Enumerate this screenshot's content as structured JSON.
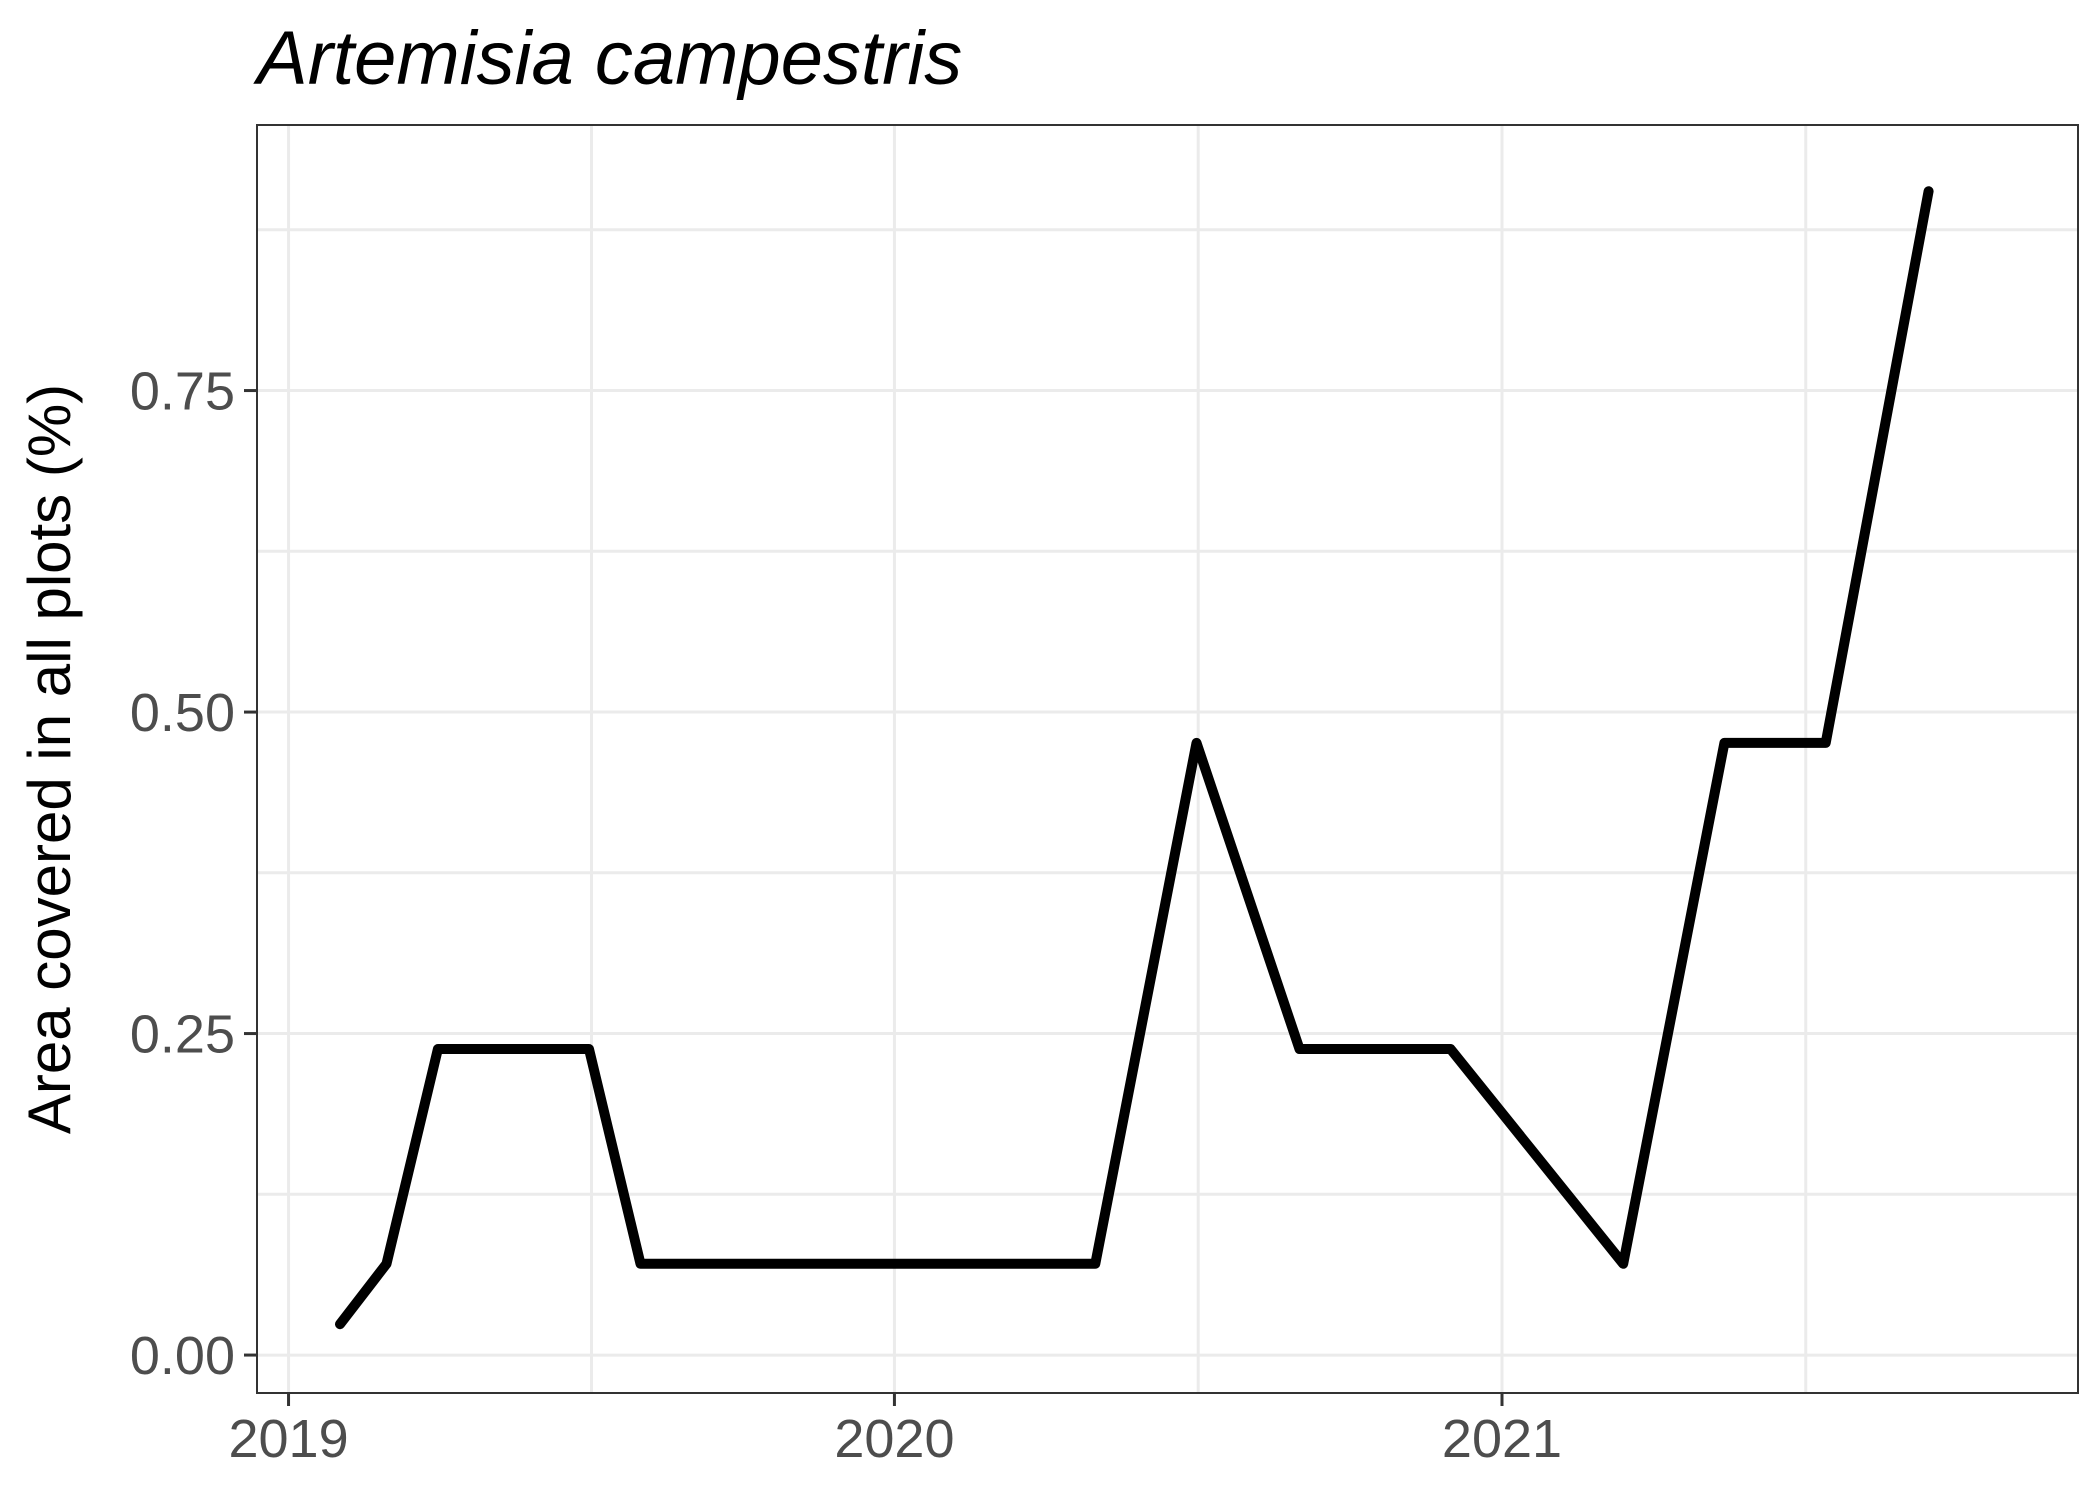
{
  "chart_data": {
    "type": "line",
    "title": "Artemisia campestris",
    "xlabel": "",
    "ylabel": "Area covered in all plots (%)",
    "x_axis": {
      "type": "date",
      "range": [
        "2018-12-13",
        "2021-12-14"
      ],
      "ticks": [
        {
          "value": "2019-01-01",
          "label": "2019"
        },
        {
          "value": "2020-01-01",
          "label": "2020"
        },
        {
          "value": "2021-01-01",
          "label": "2021"
        }
      ]
    },
    "y_axis": {
      "range": [
        -0.0295,
        0.9565
      ],
      "ticks": [
        {
          "value": 0,
          "label": "0.00"
        },
        {
          "value": 0.25,
          "label": "0.25"
        },
        {
          "value": 0.5,
          "label": "0.50"
        },
        {
          "value": 0.75,
          "label": "0.75"
        }
      ]
    },
    "grid": true,
    "legend": "none",
    "series": [
      {
        "color": "#000000",
        "points": [
          {
            "x": "2019-02-01",
            "y": 0.024
          },
          {
            "x": "2019-03-01",
            "y": 0.071
          },
          {
            "x": "2019-04-01",
            "y": 0.238
          },
          {
            "x": "2019-05-01",
            "y": 0.238
          },
          {
            "x": "2019-06-01",
            "y": 0.238
          },
          {
            "x": "2019-07-01",
            "y": 0.238
          },
          {
            "x": "2019-08-01",
            "y": 0.071
          },
          {
            "x": "2019-09-01",
            "y": 0.071
          },
          {
            "x": "2019-10-01",
            "y": 0.071
          },
          {
            "x": "2019-11-01",
            "y": 0.071
          },
          {
            "x": "2019-12-01",
            "y": 0.071
          },
          {
            "x": "2020-01-01",
            "y": 0.071
          },
          {
            "x": "2020-02-01",
            "y": 0.071
          },
          {
            "x": "2020-03-01",
            "y": 0.071
          },
          {
            "x": "2020-04-01",
            "y": 0.071
          },
          {
            "x": "2020-05-01",
            "y": 0.071
          },
          {
            "x": "2020-07-01",
            "y": 0.476
          },
          {
            "x": "2020-09-01",
            "y": 0.238
          },
          {
            "x": "2020-10-01",
            "y": 0.238
          },
          {
            "x": "2020-11-01",
            "y": 0.238
          },
          {
            "x": "2020-12-01",
            "y": 0.238
          },
          {
            "x": "2021-03-15",
            "y": 0.071
          },
          {
            "x": "2021-05-15",
            "y": 0.476
          },
          {
            "x": "2021-06-15",
            "y": 0.476
          },
          {
            "x": "2021-07-15",
            "y": 0.476
          },
          {
            "x": "2021-09-15",
            "y": 0.905
          }
        ]
      }
    ]
  }
}
